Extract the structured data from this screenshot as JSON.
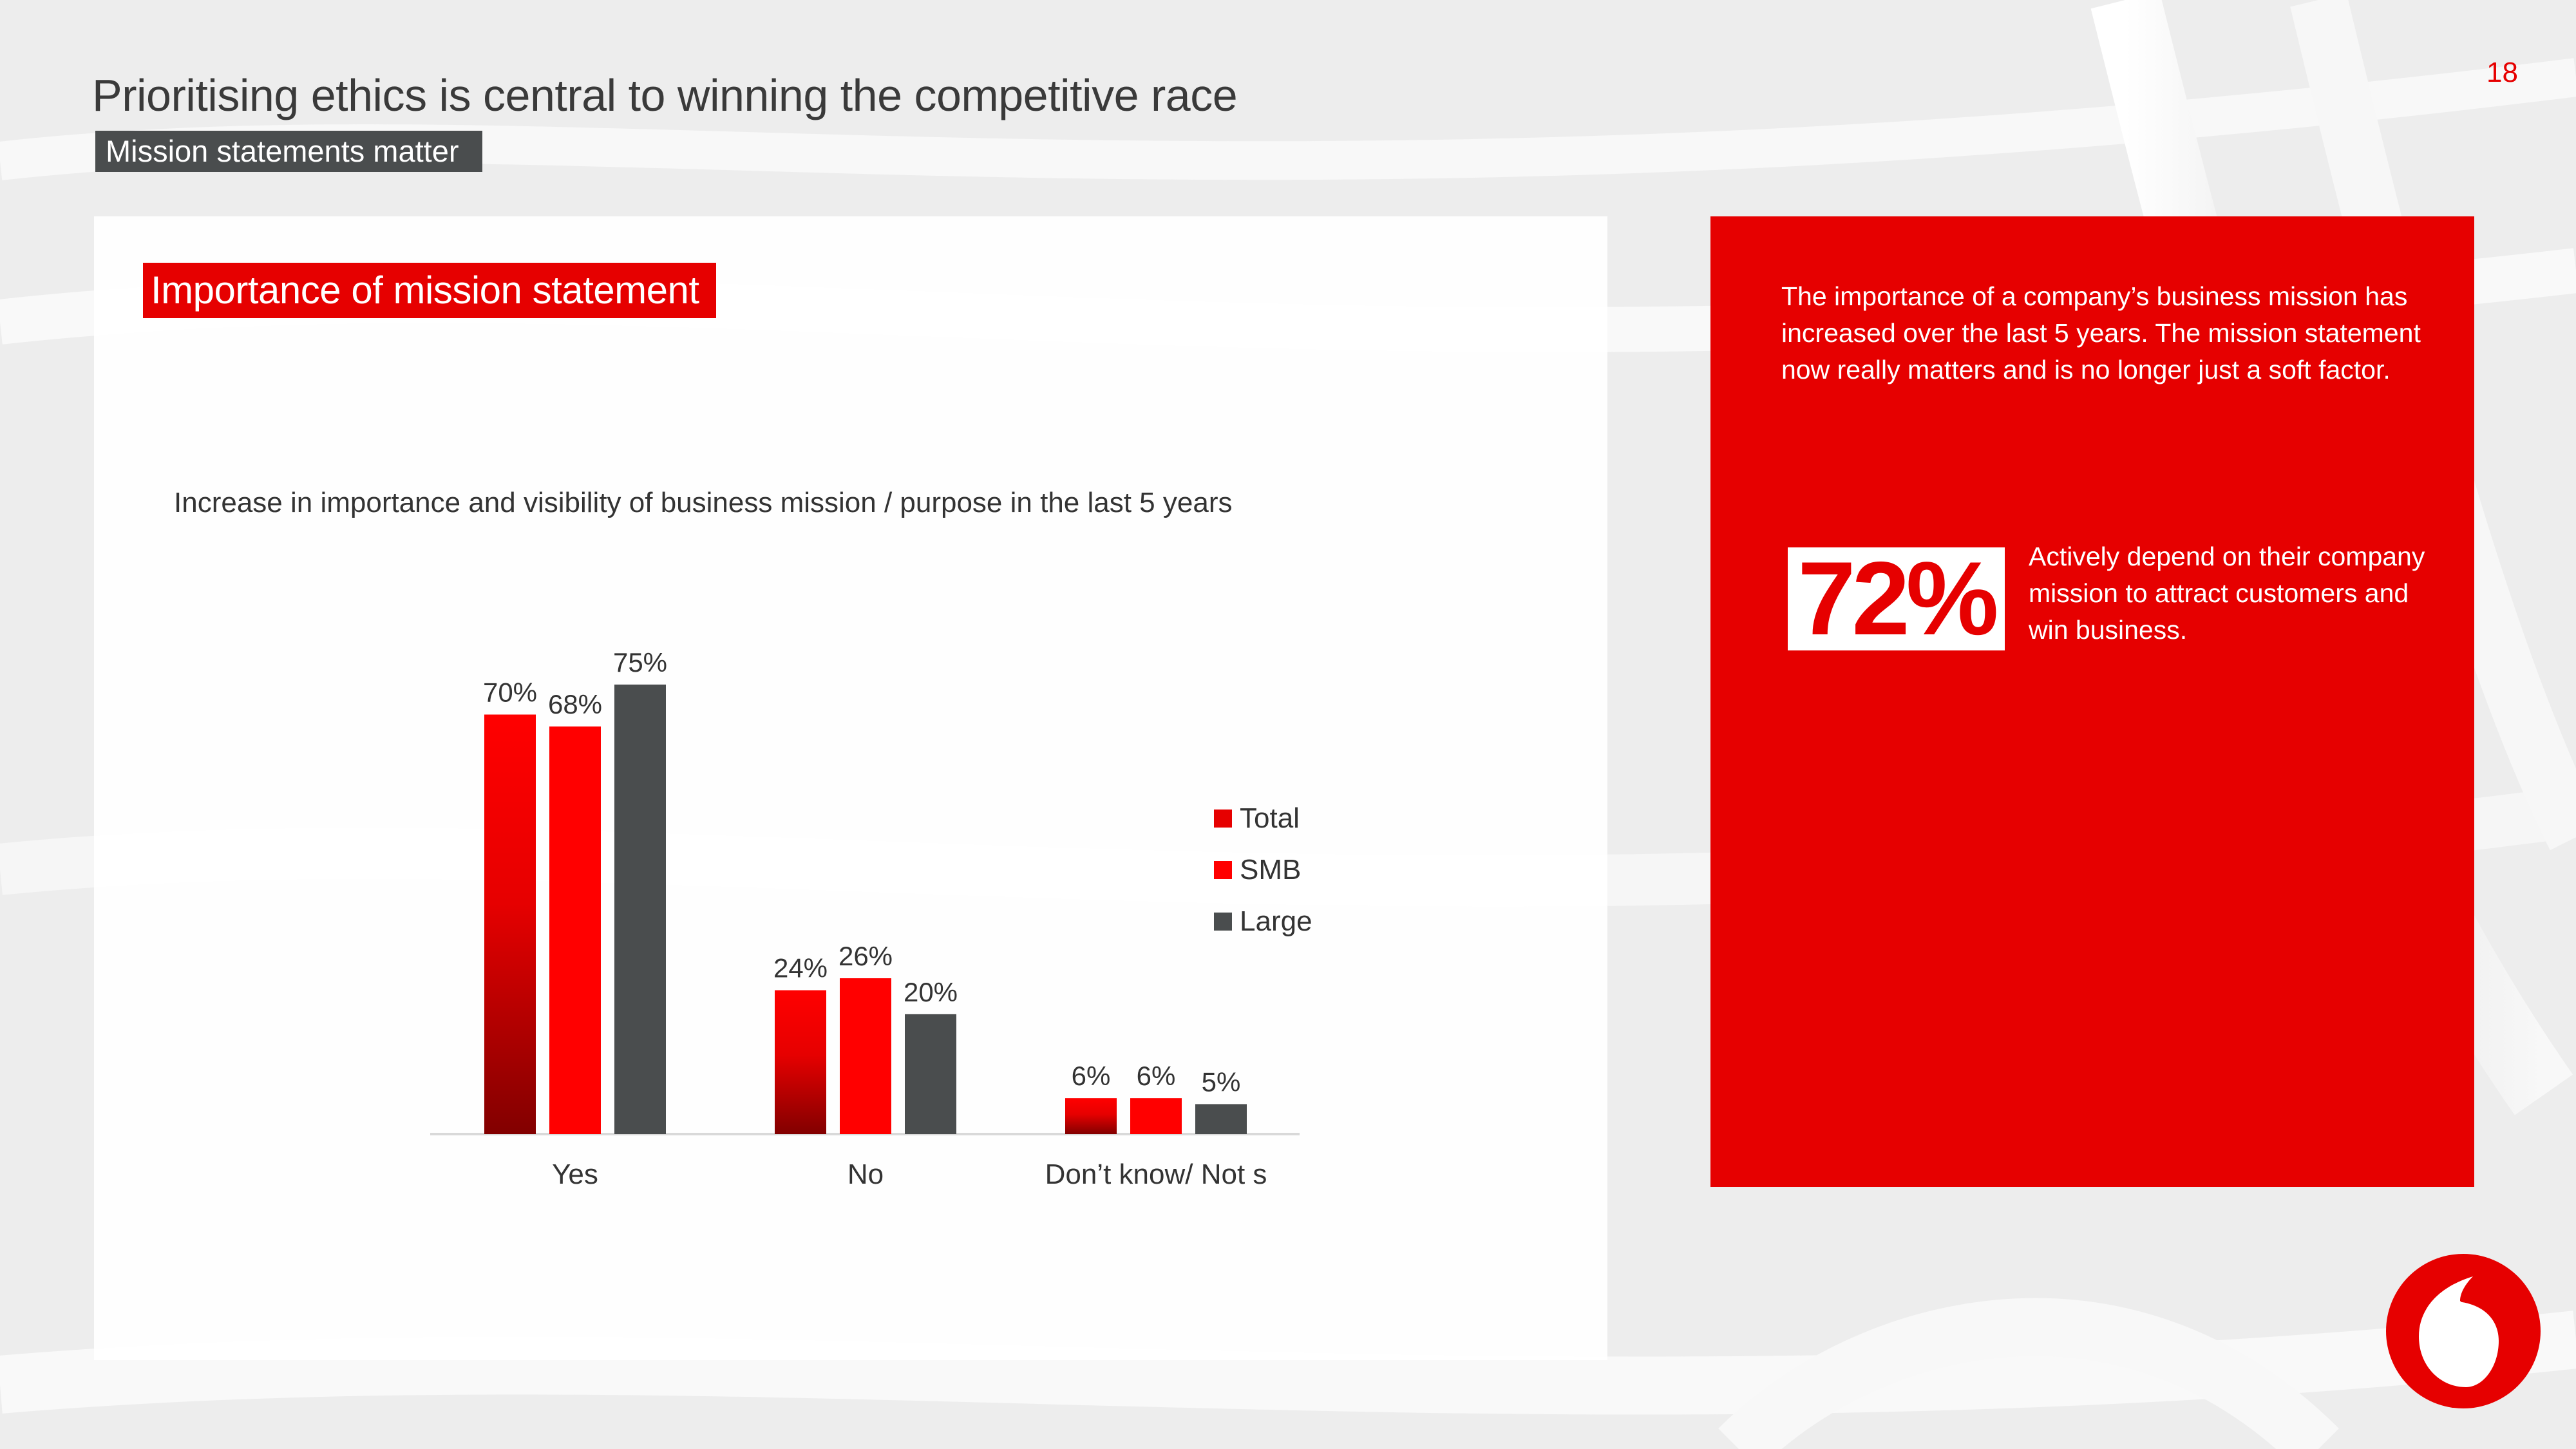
{
  "slide": {
    "title": "Prioritising ethics is central to winning the competitive race",
    "subtitle": "Mission statements matter",
    "page_number": "18"
  },
  "chart_heading": "Importance of mission statement",
  "chart_question": "Increase in importance and visibility of business mission / purpose in the last 5 years",
  "colors": {
    "brand_red": "#e60000",
    "dark_grey": "#4a4d4e",
    "text_grey": "#333333"
  },
  "chart_data": {
    "type": "bar",
    "categories": [
      "Yes",
      "No",
      "Don’t know/ Not s"
    ],
    "series": [
      {
        "name": "Total",
        "values": [
          70,
          24,
          6
        ],
        "value_labels": [
          "70%",
          "24%",
          "6%"
        ],
        "color": "#e60000"
      },
      {
        "name": "SMB",
        "values": [
          68,
          26,
          6
        ],
        "value_labels": [
          "68%",
          "26%",
          "6%"
        ],
        "color": "#ff0000"
      },
      {
        "name": "Large",
        "values": [
          75,
          20,
          5
        ],
        "value_labels": [
          "75%",
          "20%",
          "5%"
        ],
        "color": "#4a4d4e"
      }
    ],
    "ylim": [
      0,
      75
    ],
    "grid": false,
    "legend_position": "right"
  },
  "info": {
    "text": "The importance of a company’s business mission has increased over the last 5 years.  The mission statement now  really matters and is no longer just a soft factor.",
    "stat_value": "72%",
    "stat_text": "Actively depend on their company mission to attract customers and win business."
  },
  "logo_icon": "vodafone-speechmark-logo"
}
